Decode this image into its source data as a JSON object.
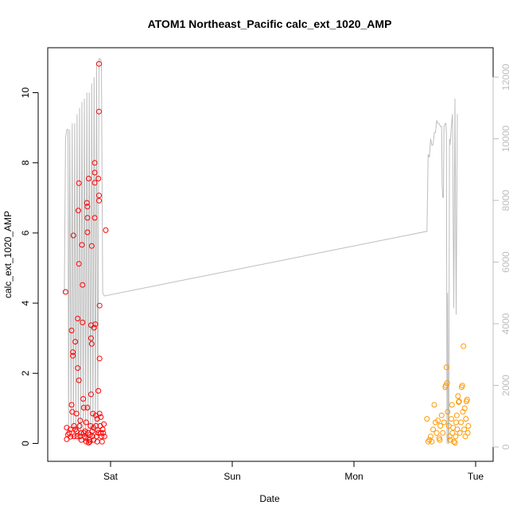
{
  "chart_data": {
    "type": "scatter",
    "title": "ATOM1 Northeast_Pacific calc_ext_1020_AMP",
    "xlabel": "Date",
    "ylabel": "calc_ext_1020_AMP",
    "x_ticks": [
      "Sat",
      "Sun",
      "Mon",
      "Tue"
    ],
    "y_ticks": [
      "0",
      "2",
      "4",
      "6",
      "8",
      "10"
    ],
    "y2_ticks": [
      "0",
      "2000",
      "4000",
      "6000",
      "8000",
      "10000",
      "12000"
    ],
    "ylim": [
      0,
      11
    ],
    "y2lim": [
      0,
      13000
    ],
    "colors": {
      "series1": "#ff0000",
      "series2": "#ff9900",
      "line": "#bdbdbd",
      "axis": "#000000",
      "axis2": "#bdbdbd"
    },
    "series": [
      {
        "color": "#ff0000",
        "points": [
          [
            -0.37,
            4.32
          ],
          [
            -0.36,
            0.45
          ],
          [
            -0.36,
            0.12
          ],
          [
            -0.35,
            0.25
          ],
          [
            -0.34,
            0.3
          ],
          [
            -0.33,
            0.4
          ],
          [
            -0.33,
            0.19
          ],
          [
            -0.32,
            3.22
          ],
          [
            -0.32,
            1.1
          ],
          [
            -0.315,
            0.9
          ],
          [
            -0.31,
            2.6
          ],
          [
            -0.31,
            2.5
          ],
          [
            -0.305,
            5.93
          ],
          [
            -0.3,
            0.5
          ],
          [
            -0.3,
            0.2
          ],
          [
            -0.29,
            2.9
          ],
          [
            -0.29,
            0.4
          ],
          [
            -0.28,
            0.35
          ],
          [
            -0.28,
            0.85
          ],
          [
            -0.275,
            0.2
          ],
          [
            -0.27,
            3.56
          ],
          [
            -0.27,
            2.15
          ],
          [
            -0.265,
            6.64
          ],
          [
            -0.26,
            7.42
          ],
          [
            -0.26,
            5.12
          ],
          [
            -0.26,
            1.8
          ],
          [
            -0.255,
            0.5
          ],
          [
            -0.25,
            0.2
          ],
          [
            -0.25,
            0.65
          ],
          [
            -0.24,
            0.3
          ],
          [
            -0.24,
            0.1
          ],
          [
            -0.235,
            5.66
          ],
          [
            -0.23,
            4.52
          ],
          [
            -0.23,
            3.45
          ],
          [
            -0.225,
            1.27
          ],
          [
            -0.22,
            0.3
          ],
          [
            -0.22,
            1.02
          ],
          [
            -0.215,
            0.2
          ],
          [
            -0.21,
            0.35
          ],
          [
            -0.205,
            0.15
          ],
          [
            -0.2,
            0.05
          ],
          [
            -0.2,
            0.6
          ],
          [
            -0.195,
            6.86
          ],
          [
            -0.19,
            6.75
          ],
          [
            -0.19,
            6.43
          ],
          [
            -0.19,
            6.02
          ],
          [
            -0.19,
            1.02
          ],
          [
            -0.185,
            0.3
          ],
          [
            -0.18,
            7.55
          ],
          [
            -0.18,
            0.02
          ],
          [
            -0.175,
            0.1
          ],
          [
            -0.17,
            0.05
          ],
          [
            -0.17,
            0.25
          ],
          [
            -0.165,
            0.5
          ],
          [
            -0.16,
            3.37
          ],
          [
            -0.16,
            3.0
          ],
          [
            -0.16,
            1.4
          ],
          [
            -0.155,
            5.63
          ],
          [
            -0.155,
            2.84
          ],
          [
            -0.15,
            0.2
          ],
          [
            -0.15,
            0.35
          ],
          [
            -0.145,
            0.85
          ],
          [
            -0.14,
            0.45
          ],
          [
            -0.14,
            0.1
          ],
          [
            -0.135,
            3.3
          ],
          [
            -0.13,
            7.72
          ],
          [
            -0.13,
            8.0
          ],
          [
            -0.13,
            7.43
          ],
          [
            -0.13,
            6.43
          ],
          [
            -0.125,
            3.4
          ],
          [
            -0.12,
            0.8
          ],
          [
            -0.12,
            0.5
          ],
          [
            -0.115,
            0.2
          ],
          [
            -0.11,
            0.7
          ],
          [
            -0.11,
            0.05
          ],
          [
            -0.105,
            0.38
          ],
          [
            -0.1,
            7.55
          ],
          [
            -0.1,
            1.5
          ],
          [
            -0.1,
            0.3
          ],
          [
            -0.095,
            10.82
          ],
          [
            -0.095,
            9.46
          ],
          [
            -0.095,
            7.07
          ],
          [
            -0.095,
            6.92
          ],
          [
            -0.09,
            3.93
          ],
          [
            -0.09,
            2.42
          ],
          [
            -0.09,
            0.85
          ],
          [
            -0.085,
            0.5
          ],
          [
            -0.08,
            0.3
          ],
          [
            -0.08,
            0.75
          ],
          [
            -0.075,
            0.2
          ],
          [
            -0.07,
            0.05
          ],
          [
            -0.065,
            0.4
          ],
          [
            -0.06,
            0.3
          ],
          [
            -0.055,
            0.55
          ],
          [
            -0.05,
            0.2
          ],
          [
            -0.04,
            6.08
          ]
        ]
      },
      {
        "color": "#ff9900",
        "points": [
          [
            2.6,
            0.7
          ],
          [
            2.61,
            0.05
          ],
          [
            2.62,
            0.1
          ],
          [
            2.63,
            0.2
          ],
          [
            2.64,
            0.05
          ],
          [
            2.65,
            0.4
          ],
          [
            2.66,
            1.1
          ],
          [
            2.67,
            0.6
          ],
          [
            2.68,
            0.3
          ],
          [
            2.69,
            0.65
          ],
          [
            2.7,
            0.15
          ],
          [
            2.705,
            0.1
          ],
          [
            2.71,
            0.5
          ],
          [
            2.72,
            0.8
          ],
          [
            2.73,
            0.3
          ],
          [
            2.74,
            0.6
          ],
          [
            2.75,
            1.6
          ],
          [
            2.755,
            1.65
          ],
          [
            2.76,
            2.17
          ],
          [
            2.765,
            1.72
          ],
          [
            2.77,
            0.9
          ],
          [
            2.78,
            0.5
          ],
          [
            2.785,
            0.2
          ],
          [
            2.79,
            0.1
          ],
          [
            2.8,
            0.7
          ],
          [
            2.805,
            1.1
          ],
          [
            2.81,
            0.3
          ],
          [
            2.815,
            0.45
          ],
          [
            2.82,
            0.05
          ],
          [
            2.83,
            0.02
          ],
          [
            2.835,
            0.2
          ],
          [
            2.84,
            0.6
          ],
          [
            2.845,
            0.8
          ],
          [
            2.85,
            0.4
          ],
          [
            2.855,
            1.35
          ],
          [
            2.86,
            1.18
          ],
          [
            2.865,
            1.2
          ],
          [
            2.87,
            0.3
          ],
          [
            2.88,
            0.6
          ],
          [
            2.885,
            1.6
          ],
          [
            2.89,
            1.65
          ],
          [
            2.895,
            0.9
          ],
          [
            2.9,
            2.77
          ],
          [
            2.905,
            0.4
          ],
          [
            2.91,
            1.0
          ],
          [
            2.915,
            0.2
          ],
          [
            2.92,
            0.7
          ],
          [
            2.925,
            1.2
          ],
          [
            2.93,
            1.25
          ],
          [
            2.935,
            0.3
          ],
          [
            2.94,
            0.5
          ]
        ]
      }
    ],
    "line_series": {
      "color": "#bdbdbd",
      "points": [
        [
          -0.38,
          5000
        ],
        [
          -0.37,
          10000
        ],
        [
          -0.36,
          10300
        ],
        [
          -0.35,
          10300
        ],
        [
          -0.345,
          500
        ],
        [
          -0.335,
          10300
        ],
        [
          -0.325,
          500
        ],
        [
          -0.315,
          10500
        ],
        [
          -0.305,
          300
        ],
        [
          -0.295,
          10500
        ],
        [
          -0.285,
          300
        ],
        [
          -0.275,
          10800
        ],
        [
          -0.265,
          200
        ],
        [
          -0.255,
          11000
        ],
        [
          -0.245,
          300
        ],
        [
          -0.235,
          11200
        ],
        [
          -0.225,
          400
        ],
        [
          -0.215,
          11300
        ],
        [
          -0.205,
          200
        ],
        [
          -0.195,
          11500
        ],
        [
          -0.185,
          200
        ],
        [
          -0.175,
          11500
        ],
        [
          -0.165,
          300
        ],
        [
          -0.155,
          11800
        ],
        [
          -0.145,
          300
        ],
        [
          -0.135,
          12000
        ],
        [
          -0.125,
          300
        ],
        [
          -0.115,
          12500
        ],
        [
          -0.105,
          300
        ],
        [
          -0.095,
          12600
        ],
        [
          -0.085,
          12600
        ],
        [
          -0.075,
          12500
        ],
        [
          -0.065,
          5000
        ],
        [
          -0.05,
          4900
        ],
        [
          2.6,
          7000
        ],
        [
          2.61,
          9500
        ],
        [
          2.62,
          9400
        ],
        [
          2.63,
          10000
        ],
        [
          2.64,
          9800
        ],
        [
          2.65,
          9800
        ],
        [
          2.66,
          10200
        ],
        [
          2.67,
          10200
        ],
        [
          2.68,
          10600
        ],
        [
          2.69,
          10500
        ],
        [
          2.7,
          10500
        ],
        [
          2.71,
          10400
        ],
        [
          2.72,
          10400
        ],
        [
          2.725,
          8500
        ],
        [
          2.73,
          8100
        ],
        [
          2.735,
          8100
        ],
        [
          2.74,
          10400
        ],
        [
          2.75,
          10500
        ],
        [
          2.755,
          10500
        ],
        [
          2.76,
          10200
        ],
        [
          2.765,
          100
        ],
        [
          2.77,
          5000
        ],
        [
          2.775,
          100
        ],
        [
          2.78,
          200
        ],
        [
          2.785,
          10000
        ],
        [
          2.79,
          9800
        ],
        [
          2.8,
          10400
        ],
        [
          2.81,
          10800
        ],
        [
          2.82,
          4500
        ],
        [
          2.83,
          11300
        ],
        [
          2.84,
          4300
        ],
        [
          2.85,
          10800
        ]
      ]
    }
  }
}
